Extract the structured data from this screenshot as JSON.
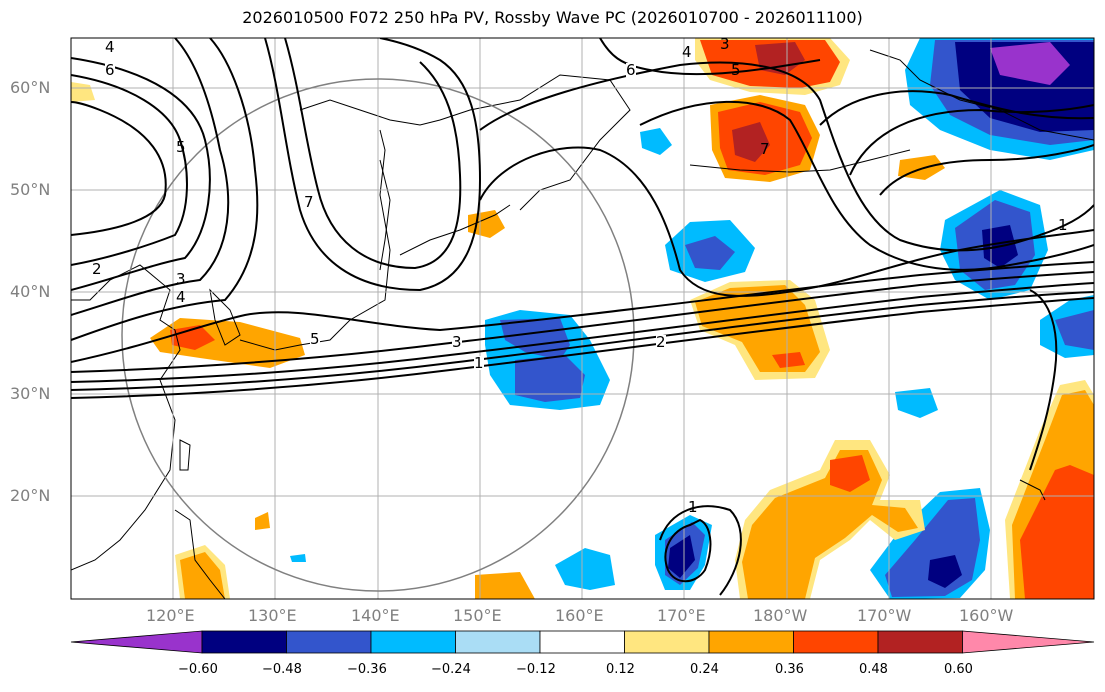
{
  "title": "2026010500 F072 250 hPa PV, Rossby Wave PC (2026010700 - 2026011100)",
  "lat_labels": [
    "60°N",
    "50°N",
    "40°N",
    "30°N",
    "20°N"
  ],
  "lon_labels": [
    "120°E",
    "130°E",
    "140°E",
    "150°E",
    "160°E",
    "170°E",
    "180°W",
    "170°W",
    "160°W"
  ],
  "contour_labels": [
    "4",
    "6",
    "5",
    "7",
    "3",
    "4",
    "5",
    "3",
    "1",
    "2",
    "6",
    "4",
    "3",
    "5",
    "7",
    "1",
    "1",
    "2"
  ],
  "colorbar": {
    "ticks": [
      "−0.60",
      "−0.48",
      "−0.36",
      "−0.24",
      "−0.12",
      "0.12",
      "0.24",
      "0.36",
      "0.48",
      "0.60"
    ],
    "colors": [
      "#9933cc",
      "#000080",
      "#3355cc",
      "#00bbff",
      "#aaddf5",
      "#ffffff",
      "#ffe680",
      "#ffa500",
      "#ff4500",
      "#b22222",
      "#ff88aa"
    ]
  },
  "fills": {
    "neg_strong": "#000080",
    "neg_mid": "#3355cc",
    "neg_light": "#00bbff",
    "neg_pale": "#aaddf5",
    "neg_purple": "#9933cc",
    "pos_pale": "#ffe680",
    "pos_light": "#ffa500",
    "pos_mid": "#ff4500",
    "pos_strong": "#b22222"
  }
}
